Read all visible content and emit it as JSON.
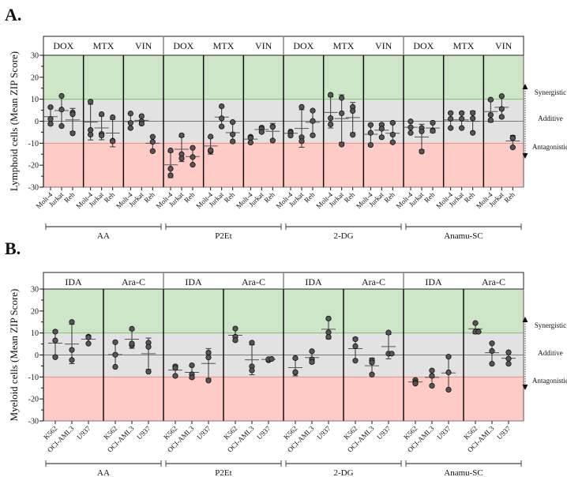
{
  "colors": {
    "synergy": "#cde6c8",
    "additive": "#e2e2e2",
    "antagonism": "#fecbc7",
    "point": "#555555",
    "synergy_line": "#7cc46a",
    "antagonism_line": "#f08a84"
  },
  "zones": {
    "labels": [
      "Synergistic",
      "Additive",
      "Antagonistic"
    ],
    "bounds": [
      10,
      -10
    ]
  },
  "chart_data": [
    {
      "type": "scatter",
      "panel_label": "A.",
      "ylabel": "Lymphoid cells (Mean ZIP Score)",
      "ylim": [
        -30,
        30
      ],
      "yticks": [
        30,
        20,
        10,
        0,
        -10,
        -20,
        -30
      ],
      "error": "mean ± SD",
      "groups": [
        {
          "name": "AA",
          "drugs": [
            {
              "name": "DOX",
              "cells": [
                {
                  "name": "Molt-4",
                  "values": [
                    6.4,
                    1.0,
                    -1.2
                  ]
                },
                {
                  "name": "Jurkat",
                  "values": [
                    11.5,
                    5.3,
                    -2.2
                  ]
                },
                {
                  "name": "Reh",
                  "values": [
                    4.0,
                    3.2,
                    -5.5
                  ]
                }
              ]
            },
            {
              "name": "MTX",
              "cells": [
                {
                  "name": "Molt-4",
                  "values": [
                    8.9,
                    -4.0,
                    -6.1
                  ]
                },
                {
                  "name": "Jurkat",
                  "values": [
                    3.2,
                    -5.8,
                    -6.5
                  ]
                },
                {
                  "name": "Reh",
                  "values": [
                    1.8,
                    -8.9,
                    -9.1
                  ]
                }
              ]
            },
            {
              "name": "VIN",
              "cells": [
                {
                  "name": "Molt-4",
                  "values": [
                    3.5,
                    -0.8,
                    -3.1
                  ]
                },
                {
                  "name": "Jurkat",
                  "values": [
                    2.3,
                    0.0,
                    -1.1
                  ]
                },
                {
                  "name": "Reh",
                  "values": [
                    -7.1,
                    -9.4,
                    -13.6
                  ]
                }
              ]
            }
          ]
        },
        {
          "name": "P2Et",
          "drugs": [
            {
              "name": "DOX",
              "cells": [
                {
                  "name": "Molt-4",
                  "values": [
                    -13.3,
                    -21.6,
                    -24.6
                  ]
                },
                {
                  "name": "Jurkat",
                  "values": [
                    -6.4,
                    -15.0,
                    -16.9
                  ]
                },
                {
                  "name": "Reh",
                  "values": [
                    -12.1,
                    -16.3,
                    -19.8
                  ]
                }
              ]
            },
            {
              "name": "MTX",
              "cells": [
                {
                  "name": "Molt-4",
                  "values": [
                    -7.0,
                    -13.6,
                    -13.2
                  ]
                },
                {
                  "name": "Jurkat",
                  "values": [
                    6.8,
                    1.3,
                    -2.4
                  ]
                },
                {
                  "name": "Reh",
                  "values": [
                    -0.4,
                    -6.0,
                    -9.2
                  ]
                }
              ]
            },
            {
              "name": "VIN",
              "cells": [
                {
                  "name": "Molt-4",
                  "values": [
                    -7.1,
                    -7.6,
                    -9.7
                  ]
                },
                {
                  "name": "Jurkat",
                  "values": [
                    -2.9,
                    -3.5,
                    -4.9
                  ]
                },
                {
                  "name": "Reh",
                  "values": [
                    -2.4,
                    -2.6,
                    -8.8
                  ]
                }
              ]
            }
          ]
        },
        {
          "name": "2-DG",
          "drugs": [
            {
              "name": "DOX",
              "cells": [
                {
                  "name": "Molt-4",
                  "values": [
                    -4.7,
                    -5.3,
                    -6.5
                  ]
                },
                {
                  "name": "Jurkat",
                  "values": [
                    6.5,
                    -7.3,
                    -9.1
                  ]
                },
                {
                  "name": "Reh",
                  "values": [
                    4.8,
                    0.1,
                    -6.4
                  ]
                }
              ]
            },
            {
              "name": "MTX",
              "cells": [
                {
                  "name": "Molt-4",
                  "values": [
                    12.0,
                    1.4,
                    -1.4
                  ]
                },
                {
                  "name": "Jurkat",
                  "values": [
                    10.6,
                    3.6,
                    -10.6
                  ]
                },
                {
                  "name": "Reh",
                  "values": [
                    6.5,
                    4.7,
                    -6.2
                  ]
                }
              ]
            },
            {
              "name": "VIN",
              "cells": [
                {
                  "name": "Molt-4",
                  "values": [
                    -1.7,
                    -5.3,
                    -10.8
                  ]
                },
                {
                  "name": "Jurkat",
                  "values": [
                    -1.6,
                    -3.4,
                    -7.3
                  ]
                },
                {
                  "name": "Reh",
                  "values": [
                    -0.7,
                    -6.1,
                    -9.6
                  ]
                }
              ]
            }
          ]
        },
        {
          "name": "Anamu-SC",
          "drugs": [
            {
              "name": "DOX",
              "cells": [
                {
                  "name": "Molt-4",
                  "values": [
                    -0.1,
                    -2.8,
                    -5.3
                  ]
                },
                {
                  "name": "Jurkat",
                  "values": [
                    -3.1,
                    -4.6,
                    -13.8
                  ]
                },
                {
                  "name": "Reh",
                  "values": [
                    -0.7,
                    -4.2,
                    -4.4
                  ]
                }
              ]
            },
            {
              "name": "MTX",
              "cells": [
                {
                  "name": "Molt-4",
                  "values": [
                    3.7,
                    1.1,
                    -3.1
                  ]
                },
                {
                  "name": "Jurkat",
                  "values": [
                    3.7,
                    1.1,
                    -3.1
                  ]
                },
                {
                  "name": "Reh",
                  "values": [
                    3.8,
                    1.3,
                    -5.3
                  ]
                }
              ]
            },
            {
              "name": "VIN",
              "cells": [
                {
                  "name": "Molt-4",
                  "values": [
                    9.8,
                    2.9,
                    0.5
                  ]
                },
                {
                  "name": "Jurkat",
                  "values": [
                    11.4,
                    5.6,
                    2.0
                  ]
                },
                {
                  "name": "Reh",
                  "values": [
                    -7.4,
                    -7.7,
                    -11.9
                  ]
                }
              ]
            }
          ]
        }
      ]
    },
    {
      "type": "scatter",
      "panel_label": "B.",
      "ylabel": "Myeloid cells (Mean ZIP Score)",
      "ylim": [
        -30,
        30
      ],
      "yticks": [
        30,
        20,
        10,
        0,
        -10,
        -20,
        -30
      ],
      "error": "mean ± SD",
      "groups": [
        {
          "name": "AA",
          "drugs": [
            {
              "name": "IDA",
              "cells": [
                {
                  "name": "K562",
                  "values": [
                    10.6,
                    6.6,
                    -1.0
                  ]
                },
                {
                  "name": "OCI-AML3",
                  "values": [
                    15.0,
                    2.3,
                    -2.3
                  ]
                },
                {
                  "name": "U937",
                  "values": [
                    8.3,
                    8.0,
                    5.2
                  ]
                }
              ]
            },
            {
              "name": "Ara-C",
              "cells": [
                {
                  "name": "K562",
                  "values": [
                    5.8,
                    0.1,
                    -5.4
                  ]
                },
                {
                  "name": "OCI-AML3",
                  "values": [
                    11.9,
                    4.4,
                    5.2
                  ]
                },
                {
                  "name": "U937",
                  "values": [
                    5.6,
                    3.7,
                    -7.6
                  ]
                }
              ]
            }
          ]
        },
        {
          "name": "P2Et",
          "drugs": [
            {
              "name": "IDA",
              "cells": [
                {
                  "name": "K562",
                  "values": [
                    -5.2,
                    -5.9,
                    -9.5
                  ]
                },
                {
                  "name": "OCI-AML3",
                  "values": [
                    -4.7,
                    -8.8,
                    -10.2
                  ]
                },
                {
                  "name": "U937",
                  "values": [
                    1.1,
                    -1.1,
                    -11.6
                  ]
                }
              ]
            },
            {
              "name": "Ara-C",
              "cells": [
                {
                  "name": "K562",
                  "values": [
                    12.0,
                    8.3,
                    6.7
                  ]
                },
                {
                  "name": "OCI-AML3",
                  "values": [
                    5.6,
                    -5.2,
                    -7.0
                  ]
                },
                {
                  "name": "U937",
                  "values": [
                    -2.4,
                    -1.9,
                    -1.8
                  ]
                }
              ]
            }
          ]
        },
        {
          "name": "2-DG",
          "drugs": [
            {
              "name": "IDA",
              "cells": [
                {
                  "name": "K562",
                  "values": [
                    -1.4,
                    -8.0,
                    -7.8
                  ]
                },
                {
                  "name": "OCI-AML3",
                  "values": [
                    1.7,
                    -2.0,
                    -3.2
                  ]
                },
                {
                  "name": "U937",
                  "values": [
                    16.6,
                    10.3,
                    8.2
                  ]
                }
              ]
            },
            {
              "name": "Ara-C",
              "cells": [
                {
                  "name": "K562",
                  "values": [
                    7.2,
                    4.0,
                    -2.6
                  ]
                },
                {
                  "name": "OCI-AML3",
                  "values": [
                    -2.4,
                    -3.4,
                    -8.9
                  ]
                },
                {
                  "name": "U937",
                  "values": [
                    10.2,
                    0.6,
                    0.6
                  ]
                }
              ]
            }
          ]
        },
        {
          "name": "Anamu-SC",
          "drugs": [
            {
              "name": "IDA",
              "cells": [
                {
                  "name": "K562",
                  "values": [
                    -11.4,
                    -12.4,
                    -13.0
                  ]
                },
                {
                  "name": "OCI-AML3",
                  "values": [
                    -7.1,
                    -9.5,
                    -14.0
                  ]
                },
                {
                  "name": "U937",
                  "values": [
                    -0.8,
                    -7.9,
                    -15.8
                  ]
                }
              ]
            },
            {
              "name": "Ara-C",
              "cells": [
                {
                  "name": "K562",
                  "values": [
                    14.5,
                    10.6,
                    10.6
                  ]
                },
                {
                  "name": "OCI-AML3",
                  "values": [
                    5.3,
                    1.8,
                    -4.0
                  ]
                },
                {
                  "name": "U937",
                  "values": [
                    1.2,
                    -1.7,
                    -4.0
                  ]
                }
              ]
            }
          ]
        }
      ]
    }
  ]
}
